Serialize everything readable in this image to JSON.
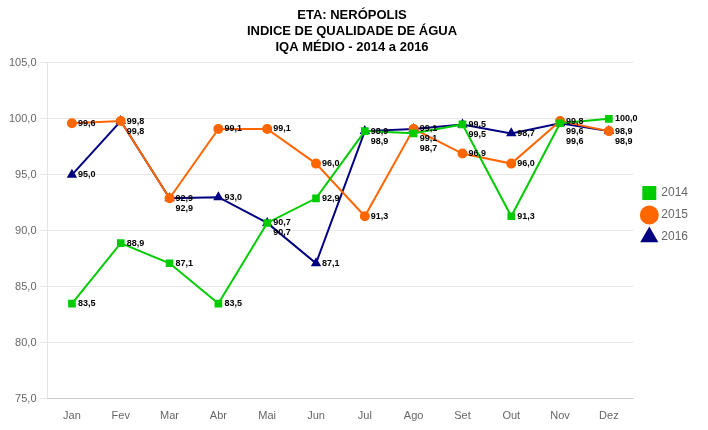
{
  "chart_data": {
    "type": "line",
    "title": "ETA: NERÓPOLIS\nINDICE DE QUALIDADE DE ÁGUA\nIQA MÉDIO - 2014 a 2016",
    "categories": [
      "Jan",
      "Fev",
      "Mar",
      "Abr",
      "Mai",
      "Jun",
      "Jul",
      "Ago",
      "Set",
      "Out",
      "Nov",
      "Dez"
    ],
    "series": [
      {
        "name": "2014",
        "color": "#00CC00",
        "marker": "square",
        "values": [
          83.5,
          88.9,
          87.1,
          83.5,
          90.7,
          92.9,
          98.9,
          98.7,
          99.5,
          91.3,
          99.6,
          100.0
        ],
        "value_labels": [
          "83,5",
          "88,9",
          "87,1",
          "83,5",
          "90,7",
          "92,9",
          "98,9",
          "98,7",
          "99,5",
          "91,3",
          "99,6",
          "100,0"
        ]
      },
      {
        "name": "2015",
        "color": "#FF6600",
        "marker": "circle",
        "values": [
          99.6,
          99.8,
          92.9,
          99.1,
          99.1,
          96.0,
          91.3,
          99.1,
          96.9,
          96.0,
          99.8,
          98.9
        ],
        "value_labels": [
          "99,6",
          "99,8",
          "92,9",
          "99,1",
          "99,1",
          "96,0",
          "91,3",
          "99,1",
          "96,9",
          "96,0",
          "99,8",
          "98,9"
        ]
      },
      {
        "name": "2016",
        "color": "#000080",
        "marker": "triangle",
        "values": [
          95.0,
          99.8,
          92.9,
          93.0,
          90.7,
          87.1,
          98.9,
          99.1,
          99.5,
          98.7,
          99.6,
          98.9
        ],
        "value_labels": [
          "95,0",
          "99,8",
          "92,9",
          "93,0",
          "90,7",
          "87,1",
          "98,9",
          "99,1",
          "99,5",
          "98,7",
          "99,6",
          "98,9"
        ]
      }
    ],
    "ylim": [
      75.0,
      105.0
    ],
    "yticks": [
      {
        "value": 75.0,
        "label": "75,0"
      },
      {
        "value": 80.0,
        "label": "80,0"
      },
      {
        "value": 85.0,
        "label": "85,0"
      },
      {
        "value": 90.0,
        "label": "90,0"
      },
      {
        "value": 95.0,
        "label": "95,0"
      },
      {
        "value": 100.0,
        "label": "100,0"
      },
      {
        "value": 105.0,
        "label": "105,0"
      }
    ],
    "grid": "y",
    "legend": "right",
    "data_labels": true
  }
}
